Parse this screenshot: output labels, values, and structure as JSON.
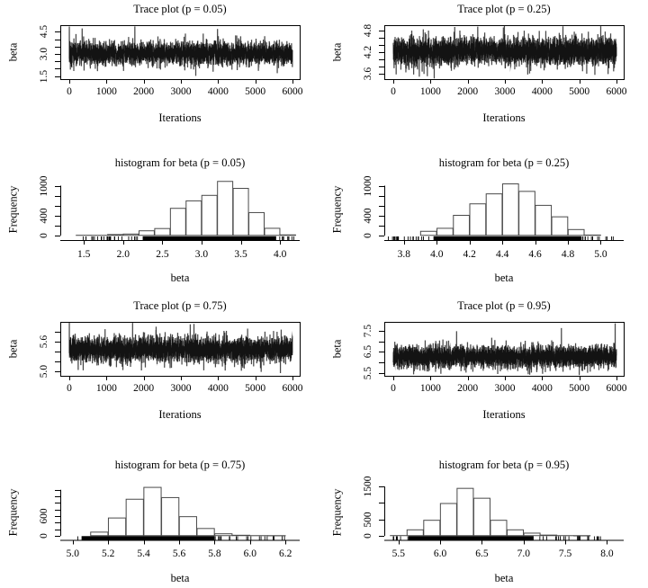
{
  "figure": {
    "background": "#ffffff",
    "text_color": "#000000",
    "line_color": "#000000",
    "bar_edge_color": "#4a4a4a",
    "bar_fill_color": "#ffffff",
    "legend": "none",
    "grid": false
  },
  "chart_data": [
    {
      "id": "trace-p005",
      "type": "line",
      "subtype": "mcmc-trace",
      "title": "Trace plot (p = 0.05)",
      "xlabel": "Iterations",
      "ylabel": "beta",
      "x_range": [
        0,
        6000
      ],
      "ylim": [
        1.3,
        4.95
      ],
      "xticks": {
        "values": [
          0,
          1000,
          2000,
          3000,
          4000,
          5000,
          6000
        ],
        "labels": [
          "0",
          "1000",
          "2000",
          "3000",
          "4000",
          "5000",
          "6000"
        ]
      },
      "yticks": {
        "values": [
          1.5,
          2.0,
          2.5,
          3.0,
          3.5,
          4.0,
          4.5
        ],
        "labels": [
          "1.5",
          "",
          "",
          "3.0",
          "",
          "",
          "4.5"
        ]
      },
      "series": {
        "n": 6000,
        "mean": 3.05,
        "sd": 0.33,
        "ar": 0.25,
        "seed": 11,
        "spikes": [
          [
            1,
            4.86
          ],
          [
            3400,
            1.52
          ],
          [
            5590,
            1.7
          ],
          [
            2450,
            1.95
          ],
          [
            700,
            2.0
          ]
        ]
      },
      "legend": "none",
      "grid": false
    },
    {
      "id": "trace-p025",
      "type": "line",
      "subtype": "mcmc-trace",
      "title": "Trace plot (p = 0.25)",
      "xlabel": "Iterations",
      "ylabel": "beta",
      "x_range": [
        0,
        6000
      ],
      "ylim": [
        3.45,
        4.95
      ],
      "xticks": {
        "values": [
          0,
          1000,
          2000,
          3000,
          4000,
          5000,
          6000
        ],
        "labels": [
          "0",
          "1000",
          "2000",
          "3000",
          "4000",
          "5000",
          "6000"
        ]
      },
      "yticks": {
        "values": [
          3.6,
          3.8,
          4.0,
          4.2,
          4.4,
          4.6,
          4.8
        ],
        "labels": [
          "3.6",
          "",
          "",
          "4.2",
          "",
          "",
          "4.8"
        ]
      },
      "series": {
        "n": 6000,
        "mean": 4.22,
        "sd": 0.17,
        "ar": 0.2,
        "seed": 12,
        "spikes": [
          [
            700,
            3.52
          ],
          [
            1650,
            4.9
          ],
          [
            4560,
            4.92
          ],
          [
            5200,
            3.6
          ]
        ]
      },
      "legend": "none",
      "grid": false
    },
    {
      "id": "hist-p005",
      "type": "bar",
      "subtype": "histogram",
      "title": "histogram for beta (p = 0.05)",
      "xlabel": "beta",
      "ylabel": "Frequency",
      "xlim": [
        1.2,
        4.25
      ],
      "bins": {
        "start": 1.4,
        "width": 0.2,
        "counts": [
          10,
          8,
          25,
          35,
          100,
          145,
          550,
          700,
          810,
          1090,
          950,
          465,
          150,
          18
        ]
      },
      "xticks": {
        "values": [
          1.5,
          2.0,
          2.5,
          3.0,
          3.5,
          4.0
        ],
        "labels": [
          "1.5",
          "2.0",
          "2.5",
          "3.0",
          "3.5",
          "4.0"
        ]
      },
      "yticks": {
        "values": [
          0,
          200,
          400,
          600,
          800,
          1000
        ],
        "labels": [
          "0",
          "",
          "400",
          "",
          "",
          "1000"
        ]
      },
      "rug": {
        "dense": [
          2.25,
          3.95
        ],
        "sparse": [
          [
            1.45,
            2.25,
            26
          ],
          [
            3.95,
            4.2,
            9
          ]
        ],
        "seed": 21
      },
      "legend": "none",
      "grid": false
    },
    {
      "id": "hist-p025",
      "type": "bar",
      "subtype": "histogram",
      "title": "histogram for beta (p = 0.25)",
      "xlabel": "beta",
      "ylabel": "Frequency",
      "xlim": [
        3.68,
        5.14
      ],
      "bins": {
        "start": 3.9,
        "width": 0.1,
        "counts": [
          90,
          150,
          410,
          640,
          840,
          1040,
          890,
          610,
          380,
          125,
          15
        ]
      },
      "xticks": {
        "values": [
          3.8,
          4.0,
          4.2,
          4.4,
          4.6,
          4.8,
          5.0
        ],
        "labels": [
          "3.8",
          "4.0",
          "4.2",
          "4.4",
          "4.6",
          "4.8",
          "5.0"
        ]
      },
      "yticks": {
        "values": [
          0,
          200,
          400,
          600,
          800,
          1000
        ],
        "labels": [
          "0",
          "",
          "400",
          "",
          "",
          "1000"
        ]
      },
      "rug": {
        "dense": [
          3.98,
          4.88
        ],
        "sparse": [
          [
            3.7,
            3.98,
            20
          ],
          [
            4.88,
            5.12,
            16
          ]
        ],
        "seed": 22
      },
      "legend": "none",
      "grid": false
    },
    {
      "id": "trace-p075",
      "type": "line",
      "subtype": "mcmc-trace",
      "title": "Trace plot (p = 0.75)",
      "xlabel": "Iterations",
      "ylabel": "beta",
      "x_range": [
        0,
        6000
      ],
      "ylim": [
        4.9,
        6.0
      ],
      "xticks": {
        "values": [
          0,
          1000,
          2000,
          3000,
          4000,
          5000,
          6000
        ],
        "labels": [
          "0",
          "1000",
          "2000",
          "3000",
          "4000",
          "5000",
          "6000"
        ]
      },
      "yticks": {
        "values": [
          5.0,
          5.2,
          5.4,
          5.6,
          5.8
        ],
        "labels": [
          "5.0",
          "",
          "",
          "5.6",
          ""
        ]
      },
      "series": {
        "n": 6000,
        "mean": 5.44,
        "sd": 0.115,
        "ar": 0.2,
        "seed": 13,
        "spikes": [
          [
            1700,
            5.98
          ],
          [
            3250,
            5.95
          ],
          [
            240,
            5.02
          ],
          [
            4700,
            5.05
          ]
        ]
      },
      "legend": "none",
      "grid": false
    },
    {
      "id": "trace-p095",
      "type": "line",
      "subtype": "mcmc-trace",
      "title": "Trace plot (p = 0.95)",
      "xlabel": "Iterations",
      "ylabel": "beta",
      "x_range": [
        0,
        6000
      ],
      "ylim": [
        5.35,
        7.95
      ],
      "xticks": {
        "values": [
          0,
          1000,
          2000,
          3000,
          4000,
          5000,
          6000
        ],
        "labels": [
          "0",
          "1000",
          "2000",
          "3000",
          "4000",
          "5000",
          "6000"
        ]
      },
      "yticks": {
        "values": [
          5.5,
          6.0,
          6.5,
          7.0,
          7.5
        ],
        "labels": [
          "5.5",
          "",
          "6.5",
          "",
          "7.5"
        ]
      },
      "series": {
        "n": 6000,
        "mean": 6.27,
        "sd": 0.24,
        "ar": 0.2,
        "seed": 14,
        "spikes": [
          [
            4520,
            7.65
          ],
          [
            5965,
            7.88
          ],
          [
            1280,
            5.45
          ],
          [
            1700,
            7.5
          ]
        ]
      },
      "legend": "none",
      "grid": false
    },
    {
      "id": "hist-p075",
      "type": "bar",
      "subtype": "histogram",
      "title": "histogram for beta (p = 0.75)",
      "xlabel": "beta",
      "ylabel": "Frequency",
      "xlim": [
        4.93,
        6.28
      ],
      "bins": {
        "start": 5.1,
        "width": 0.1,
        "counts": [
          120,
          550,
          1120,
          1480,
          1170,
          590,
          230,
          70,
          25,
          12,
          8
        ]
      },
      "xticks": {
        "values": [
          5.0,
          5.2,
          5.4,
          5.6,
          5.8,
          6.0,
          6.2
        ],
        "labels": [
          "5.0",
          "5.2",
          "5.4",
          "5.6",
          "5.8",
          "6.0",
          "6.2"
        ]
      },
      "yticks": {
        "values": [
          0,
          200,
          400,
          600,
          800,
          1000,
          1200,
          1400
        ],
        "labels": [
          "0",
          "",
          "",
          "600",
          "",
          "",
          "",
          ""
        ]
      },
      "rug": {
        "dense": [
          5.05,
          5.8
        ],
        "sparse": [
          [
            5.8,
            6.2,
            20
          ],
          [
            5.02,
            5.06,
            3
          ]
        ],
        "seed": 23
      },
      "legend": "none",
      "grid": false
    },
    {
      "id": "hist-p095",
      "type": "bar",
      "subtype": "histogram",
      "title": "histogram for beta (p = 0.95)",
      "xlabel": "beta",
      "ylabel": "Frequency",
      "xlim": [
        5.33,
        8.2
      ],
      "bins": {
        "start": 5.4,
        "width": 0.2,
        "counts": [
          15,
          190,
          480,
          990,
          1450,
          1150,
          480,
          190,
          90,
          30,
          12,
          6
        ]
      },
      "xticks": {
        "values": [
          5.5,
          6.0,
          6.5,
          7.0,
          7.5,
          8.0
        ],
        "labels": [
          "5.5",
          "6.0",
          "6.5",
          "7.0",
          "7.5",
          "8.0"
        ]
      },
      "yticks": {
        "values": [
          0,
          500,
          1000,
          1500
        ],
        "labels": [
          "0",
          "500",
          "",
          "1500"
        ]
      },
      "rug": {
        "dense": [
          5.62,
          7.12
        ],
        "sparse": [
          [
            5.42,
            5.62,
            7
          ],
          [
            7.12,
            7.95,
            22
          ]
        ],
        "seed": 24
      },
      "legend": "none",
      "grid": false
    }
  ]
}
